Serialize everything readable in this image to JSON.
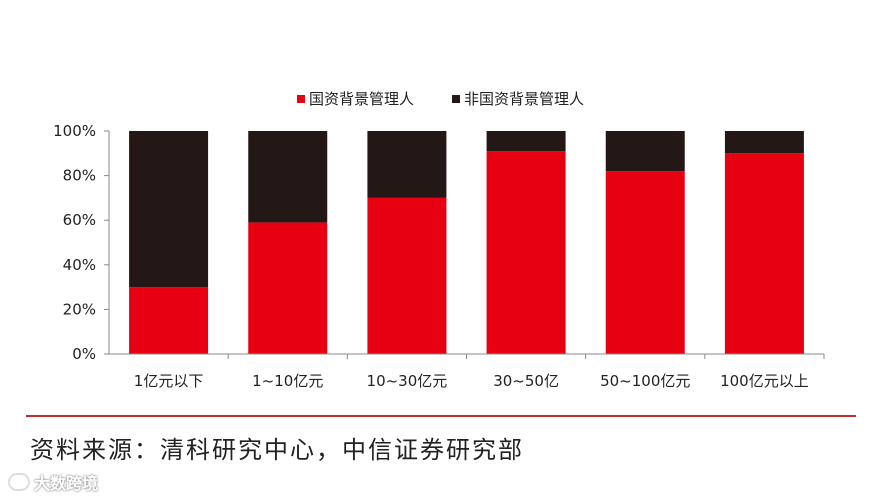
{
  "chart_data": {
    "type": "bar",
    "stacked": true,
    "categories": [
      "1亿元以下",
      "1~10亿元",
      "10~30亿元",
      "30~50亿",
      "50~100亿元",
      "100亿元以上"
    ],
    "series": [
      {
        "name": "国资背景管理人",
        "color": "#e60012",
        "values": [
          30,
          59,
          70,
          91,
          82,
          90
        ]
      },
      {
        "name": "非国资背景管理人",
        "color": "#231815",
        "values": [
          70,
          41,
          30,
          9,
          18,
          10
        ]
      }
    ],
    "ylim": [
      0,
      100
    ],
    "yticks": [
      "0%",
      "20%",
      "40%",
      "60%",
      "80%",
      "100%"
    ],
    "legend_position": "top",
    "grid": false
  },
  "footer": {
    "source": "资料来源：清科研究中心，中信证券研究部",
    "watermark": "大数跨境"
  }
}
